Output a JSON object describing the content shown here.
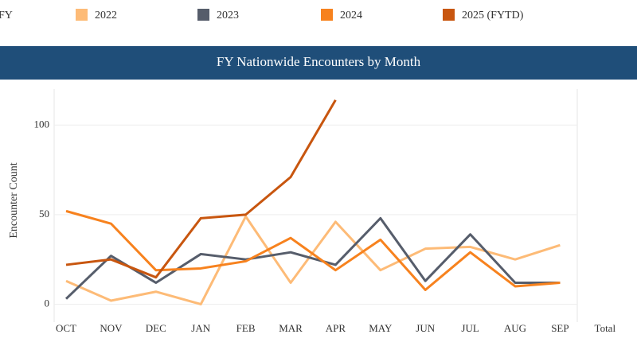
{
  "legend_label": "FY",
  "chart_data": {
    "type": "line",
    "title": "FY Nationwide Encounters by Month",
    "y_label": "Encounter Count",
    "categories": [
      "OCT",
      "NOV",
      "DEC",
      "JAN",
      "FEB",
      "MAR",
      "APR",
      "MAY",
      "JUN",
      "JUL",
      "AUG",
      "SEP",
      "Total"
    ],
    "series": [
      {
        "name": "2022",
        "color": "#fdbb77",
        "values": [
          13,
          2,
          7,
          0,
          49,
          12,
          46,
          19,
          31,
          32,
          25,
          33,
          null
        ]
      },
      {
        "name": "2023",
        "color": "#565d6b",
        "values": [
          3,
          27,
          12,
          28,
          25,
          29,
          22,
          48,
          13,
          39,
          12,
          12,
          null
        ]
      },
      {
        "name": "2024",
        "color": "#f7821e",
        "values": [
          52,
          45,
          19,
          20,
          24,
          37,
          19,
          36,
          8,
          29,
          10,
          12,
          null
        ]
      },
      {
        "name": "2025 (FYTD)",
        "color": "#c8560f",
        "values": [
          22,
          25,
          15,
          48,
          50,
          71,
          114,
          null,
          null,
          null,
          null,
          null,
          null
        ]
      }
    ],
    "ylim": [
      -10,
      121
    ],
    "yticks": [
      0,
      50,
      100
    ],
    "grid": true
  }
}
